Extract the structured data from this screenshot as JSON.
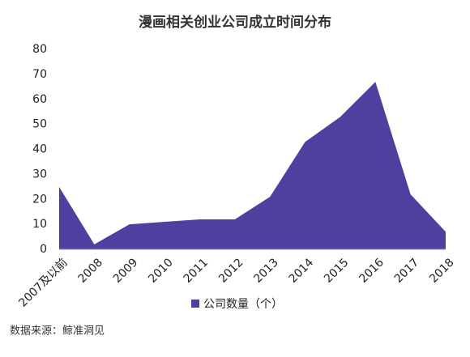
{
  "chart_data": {
    "type": "area",
    "title": "漫画相关创业公司成立时间分布",
    "categories": [
      "2007及以前",
      "2008",
      "2009",
      "2010",
      "2011",
      "2012",
      "2013",
      "2014",
      "2015",
      "2016",
      "2017",
      "2018"
    ],
    "series": [
      {
        "name": "公司数量（个）",
        "color": "#4f3f9e",
        "values": [
          25,
          2,
          10,
          11,
          12,
          12,
          21,
          43,
          53,
          67,
          22,
          7
        ]
      }
    ],
    "ylim": [
      0,
      80
    ],
    "yticks": [
      0,
      10,
      20,
      30,
      40,
      50,
      60,
      70,
      80
    ],
    "grid": false,
    "source": "数据来源：鲸准洞见"
  }
}
